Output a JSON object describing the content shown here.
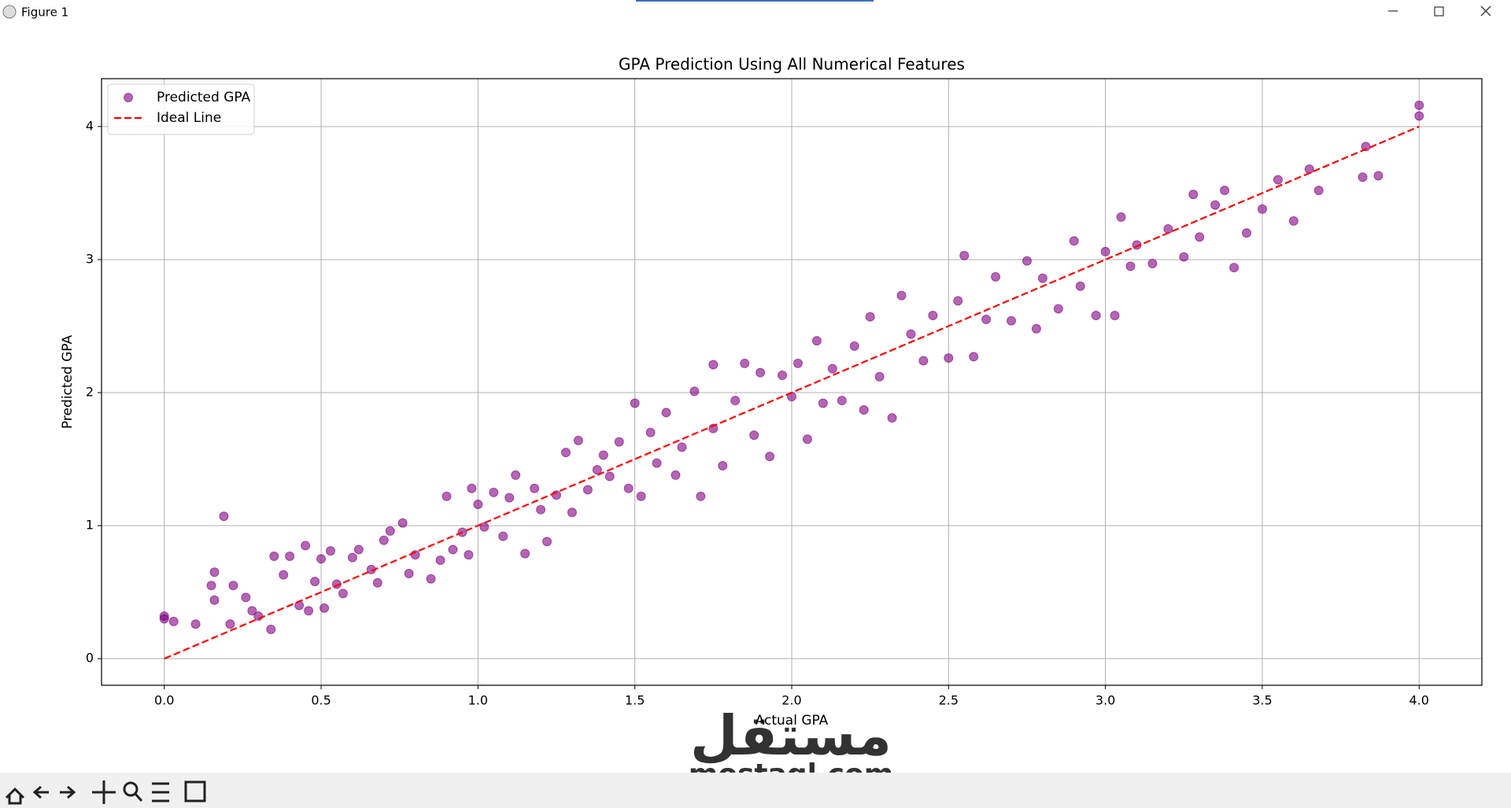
{
  "window": {
    "title": "Figure 1"
  },
  "watermark": {
    "arabic": "مستقل",
    "latin": "mostaql.com"
  },
  "chart_data": {
    "type": "scatter",
    "title": "GPA Prediction Using All Numerical Features",
    "xlabel": "Actual GPA",
    "ylabel": "Predicted GPA",
    "xlim": [
      -0.2,
      4.2
    ],
    "ylim": [
      -0.2,
      4.36
    ],
    "xticks": [
      {
        "value": 0,
        "label": "0.0"
      },
      0.5,
      {
        "value": 1,
        "label": "1.0"
      },
      1.5,
      {
        "value": 2,
        "label": "2.0"
      },
      2.5,
      {
        "value": 3,
        "label": "3.0"
      },
      3.5,
      {
        "value": 4,
        "label": "4.0"
      }
    ],
    "yticks": [
      0,
      1,
      2,
      3,
      4
    ],
    "grid": true,
    "legend": "upper left",
    "series": [
      {
        "name": "Predicted GPA",
        "type": "scatter",
        "color": "#800080",
        "x": [
          0.0,
          0.0,
          0.03,
          0.1,
          0.15,
          0.16,
          0.16,
          0.19,
          0.21,
          0.22,
          0.26,
          0.28,
          0.3,
          0.34,
          0.35,
          0.38,
          0.4,
          0.43,
          0.45,
          0.46,
          0.48,
          0.5,
          0.51,
          0.53,
          0.55,
          0.57,
          0.6,
          0.62,
          0.66,
          0.68,
          0.7,
          0.72,
          0.76,
          0.78,
          0.8,
          0.85,
          0.88,
          0.9,
          0.92,
          0.95,
          0.97,
          0.98,
          1.0,
          1.02,
          1.05,
          1.08,
          1.1,
          1.12,
          1.15,
          1.18,
          1.2,
          1.22,
          1.25,
          1.28,
          1.3,
          1.32,
          1.35,
          1.38,
          1.4,
          1.42,
          1.45,
          1.48,
          1.5,
          1.52,
          1.55,
          1.57,
          1.6,
          1.63,
          1.65,
          1.69,
          1.71,
          1.75,
          1.75,
          1.78,
          1.82,
          1.85,
          1.88,
          1.9,
          1.93,
          1.97,
          2.0,
          2.02,
          2.05,
          2.08,
          2.1,
          2.13,
          2.16,
          2.2,
          2.23,
          2.25,
          2.28,
          2.32,
          2.35,
          2.38,
          2.42,
          2.45,
          2.5,
          2.53,
          2.55,
          2.58,
          2.62,
          2.65,
          2.7,
          2.75,
          2.78,
          2.8,
          2.85,
          2.9,
          2.92,
          2.97,
          3.0,
          3.03,
          3.05,
          3.08,
          3.1,
          3.15,
          3.2,
          3.25,
          3.28,
          3.3,
          3.35,
          3.38,
          3.41,
          3.45,
          3.5,
          3.55,
          3.6,
          3.65,
          3.68,
          3.82,
          3.83,
          3.87,
          4.0,
          4.0
        ],
        "values": [
          0.32,
          0.3,
          0.28,
          0.26,
          0.55,
          0.65,
          0.44,
          1.07,
          0.26,
          0.55,
          0.46,
          0.36,
          0.32,
          0.22,
          0.77,
          0.63,
          0.77,
          0.4,
          0.85,
          0.36,
          0.58,
          0.75,
          0.38,
          0.81,
          0.56,
          0.49,
          0.76,
          0.82,
          0.67,
          0.57,
          0.89,
          0.96,
          1.02,
          0.64,
          0.78,
          0.6,
          0.74,
          1.22,
          0.82,
          0.95,
          0.78,
          1.28,
          1.16,
          0.99,
          1.25,
          0.92,
          1.21,
          1.38,
          0.79,
          1.28,
          1.12,
          0.88,
          1.23,
          1.55,
          1.1,
          1.64,
          1.27,
          1.42,
          1.53,
          1.37,
          1.63,
          1.28,
          1.92,
          1.22,
          1.7,
          1.47,
          1.85,
          1.38,
          1.59,
          2.01,
          1.22,
          2.21,
          1.73,
          1.45,
          1.94,
          2.22,
          1.68,
          2.15,
          1.52,
          2.13,
          1.97,
          2.22,
          1.65,
          2.39,
          1.92,
          2.18,
          1.94,
          2.35,
          1.87,
          2.57,
          2.12,
          1.81,
          2.73,
          2.44,
          2.24,
          2.58,
          2.26,
          2.69,
          3.03,
          2.27,
          2.55,
          2.87,
          2.54,
          2.99,
          2.48,
          2.86,
          2.63,
          3.14,
          2.8,
          2.58,
          3.06,
          2.58,
          3.32,
          2.95,
          3.11,
          2.97,
          3.23,
          3.02,
          3.49,
          3.17,
          3.41,
          3.52,
          2.94,
          3.2,
          3.38,
          3.6,
          3.29,
          3.68,
          3.52,
          3.62,
          3.85,
          3.63,
          4.16,
          4.08
        ]
      },
      {
        "name": "Ideal Line",
        "type": "line",
        "color": "#ff0000",
        "x": [
          0,
          4
        ],
        "values": [
          0,
          4
        ]
      }
    ]
  }
}
